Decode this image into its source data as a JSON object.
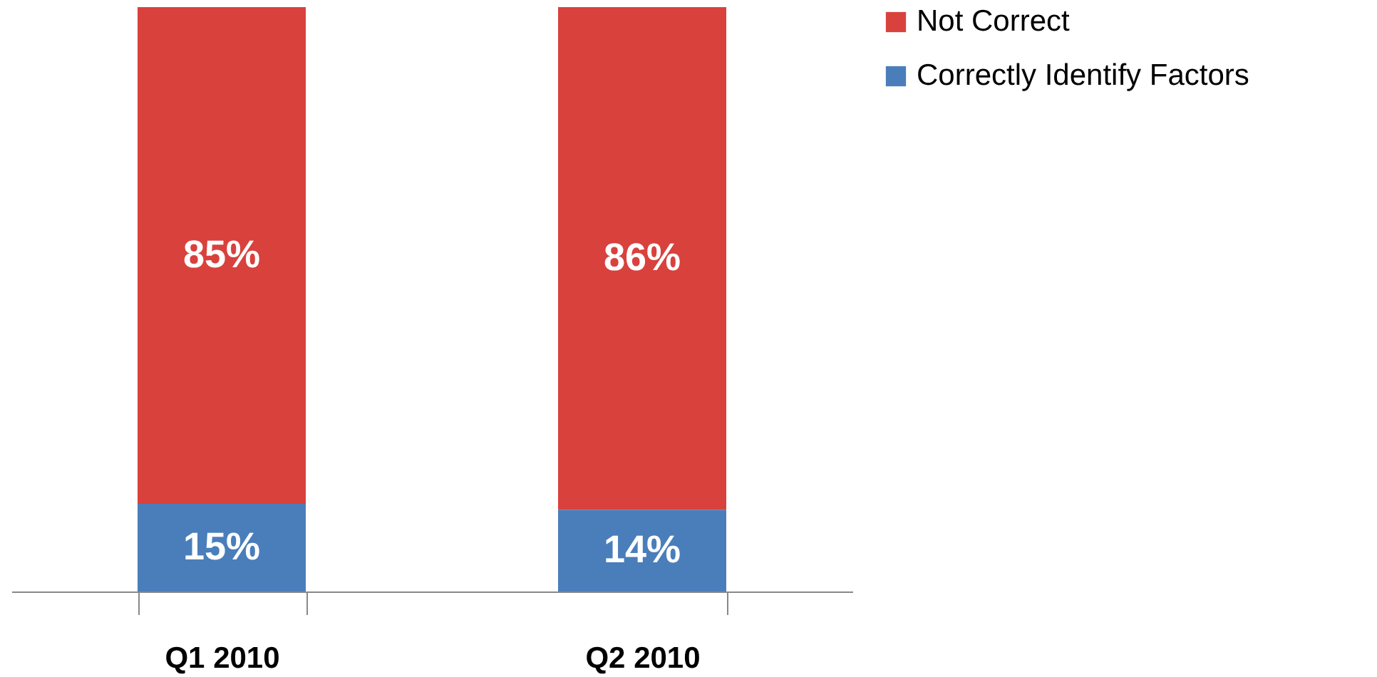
{
  "chart_data": {
    "type": "bar",
    "stacked": true,
    "categories": [
      "Q1 2010",
      "Q2 2010"
    ],
    "series": [
      {
        "name": "Correctly Identify Factors",
        "color": "#4a7ebb",
        "values": [
          15,
          14
        ],
        "value_labels": [
          "15%",
          "14%"
        ]
      },
      {
        "name": "Not Correct",
        "color": "#d9413d",
        "values": [
          85,
          86
        ],
        "value_labels": [
          "85%",
          "86%"
        ]
      }
    ],
    "legend": "right"
  }
}
